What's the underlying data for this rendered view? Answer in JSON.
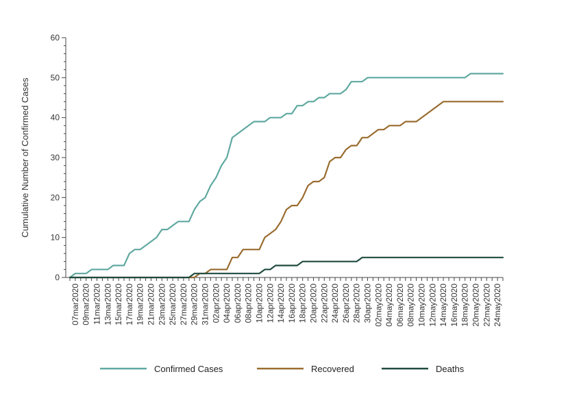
{
  "chart_data": {
    "type": "line",
    "title": "",
    "xlabel": "",
    "ylabel": "Cumulative Number of Confirmed Cases",
    "ylim": [
      0,
      60
    ],
    "yticks": [
      0,
      10,
      20,
      30,
      40,
      50,
      60
    ],
    "grid": false,
    "legend_position": "bottom",
    "x_start": "2020-03-06",
    "x_end": "2020-05-25",
    "x_tick_labels": [
      "07mar2020",
      "09mar2020",
      "11mar2020",
      "13mar2020",
      "15mar2020",
      "17mar2020",
      "19mar2020",
      "21mar2020",
      "23mar2020",
      "25mar2020",
      "27mar2020",
      "29mar2020",
      "31mar2020",
      "02apr2020",
      "04apr2020",
      "06apr2020",
      "08apr2020",
      "10apr2020",
      "12apr2020",
      "14apr2020",
      "16apr2020",
      "18apr2020",
      "20apr2020",
      "22apr2020",
      "24apr2020",
      "26apr2020",
      "28apr2020",
      "30apr2020",
      "02may2020",
      "04may2020",
      "06may2020",
      "08may2020",
      "10may2020",
      "12may2020",
      "14may2020",
      "16may2020",
      "18may2020",
      "20may2020",
      "22may2020",
      "24may2020"
    ],
    "series": [
      {
        "name": "Confirmed Cases",
        "color": "#5fa8a0",
        "points": [
          [
            "2020-03-06",
            0
          ],
          [
            "2020-03-07",
            1
          ],
          [
            "2020-03-09",
            1
          ],
          [
            "2020-03-10",
            2
          ],
          [
            "2020-03-13",
            2
          ],
          [
            "2020-03-14",
            3
          ],
          [
            "2020-03-16",
            3
          ],
          [
            "2020-03-17",
            6
          ],
          [
            "2020-03-18",
            7
          ],
          [
            "2020-03-19",
            7
          ],
          [
            "2020-03-22",
            10
          ],
          [
            "2020-03-23",
            12
          ],
          [
            "2020-03-24",
            12
          ],
          [
            "2020-03-26",
            14
          ],
          [
            "2020-03-28",
            14
          ],
          [
            "2020-03-29",
            17
          ],
          [
            "2020-03-30",
            19
          ],
          [
            "2020-03-31",
            20
          ],
          [
            "2020-04-01",
            23
          ],
          [
            "2020-04-02",
            25
          ],
          [
            "2020-04-03",
            28
          ],
          [
            "2020-04-04",
            30
          ],
          [
            "2020-04-05",
            35
          ],
          [
            "2020-04-09",
            39
          ],
          [
            "2020-04-11",
            39
          ],
          [
            "2020-04-12",
            40
          ],
          [
            "2020-04-14",
            40
          ],
          [
            "2020-04-15",
            41
          ],
          [
            "2020-04-16",
            41
          ],
          [
            "2020-04-17",
            43
          ],
          [
            "2020-04-18",
            43
          ],
          [
            "2020-04-19",
            44
          ],
          [
            "2020-04-20",
            44
          ],
          [
            "2020-04-21",
            45
          ],
          [
            "2020-04-22",
            45
          ],
          [
            "2020-04-23",
            46
          ],
          [
            "2020-04-25",
            46
          ],
          [
            "2020-04-26",
            47
          ],
          [
            "2020-04-27",
            49
          ],
          [
            "2020-04-29",
            49
          ],
          [
            "2020-04-30",
            50
          ],
          [
            "2020-05-18",
            50
          ],
          [
            "2020-05-19",
            51
          ],
          [
            "2020-05-25",
            51
          ]
        ]
      },
      {
        "name": "Recovered",
        "color": "#996b2e",
        "points": [
          [
            "2020-03-06",
            0
          ],
          [
            "2020-03-29",
            0
          ],
          [
            "2020-03-30",
            1
          ],
          [
            "2020-03-31",
            1
          ],
          [
            "2020-04-01",
            2
          ],
          [
            "2020-04-04",
            2
          ],
          [
            "2020-04-05",
            5
          ],
          [
            "2020-04-06",
            5
          ],
          [
            "2020-04-07",
            7
          ],
          [
            "2020-04-10",
            7
          ],
          [
            "2020-04-11",
            10
          ],
          [
            "2020-04-12",
            11
          ],
          [
            "2020-04-13",
            12
          ],
          [
            "2020-04-14",
            14
          ],
          [
            "2020-04-15",
            17
          ],
          [
            "2020-04-16",
            18
          ],
          [
            "2020-04-17",
            18
          ],
          [
            "2020-04-18",
            20
          ],
          [
            "2020-04-19",
            23
          ],
          [
            "2020-04-20",
            24
          ],
          [
            "2020-04-21",
            24
          ],
          [
            "2020-04-22",
            25
          ],
          [
            "2020-04-23",
            29
          ],
          [
            "2020-04-24",
            30
          ],
          [
            "2020-04-25",
            30
          ],
          [
            "2020-04-26",
            32
          ],
          [
            "2020-04-27",
            33
          ],
          [
            "2020-04-28",
            33
          ],
          [
            "2020-04-29",
            35
          ],
          [
            "2020-04-30",
            35
          ],
          [
            "2020-05-02",
            37
          ],
          [
            "2020-05-03",
            37
          ],
          [
            "2020-05-04",
            38
          ],
          [
            "2020-05-06",
            38
          ],
          [
            "2020-05-07",
            39
          ],
          [
            "2020-05-09",
            39
          ],
          [
            "2020-05-14",
            44
          ],
          [
            "2020-05-25",
            44
          ]
        ]
      },
      {
        "name": "Deaths",
        "color": "#1f4a3f",
        "points": [
          [
            "2020-03-06",
            0
          ],
          [
            "2020-03-28",
            0
          ],
          [
            "2020-03-29",
            1
          ],
          [
            "2020-04-10",
            1
          ],
          [
            "2020-04-11",
            2
          ],
          [
            "2020-04-12",
            2
          ],
          [
            "2020-04-13",
            3
          ],
          [
            "2020-04-17",
            3
          ],
          [
            "2020-04-18",
            4
          ],
          [
            "2020-04-28",
            4
          ],
          [
            "2020-04-29",
            5
          ],
          [
            "2020-05-25",
            5
          ]
        ]
      }
    ]
  }
}
